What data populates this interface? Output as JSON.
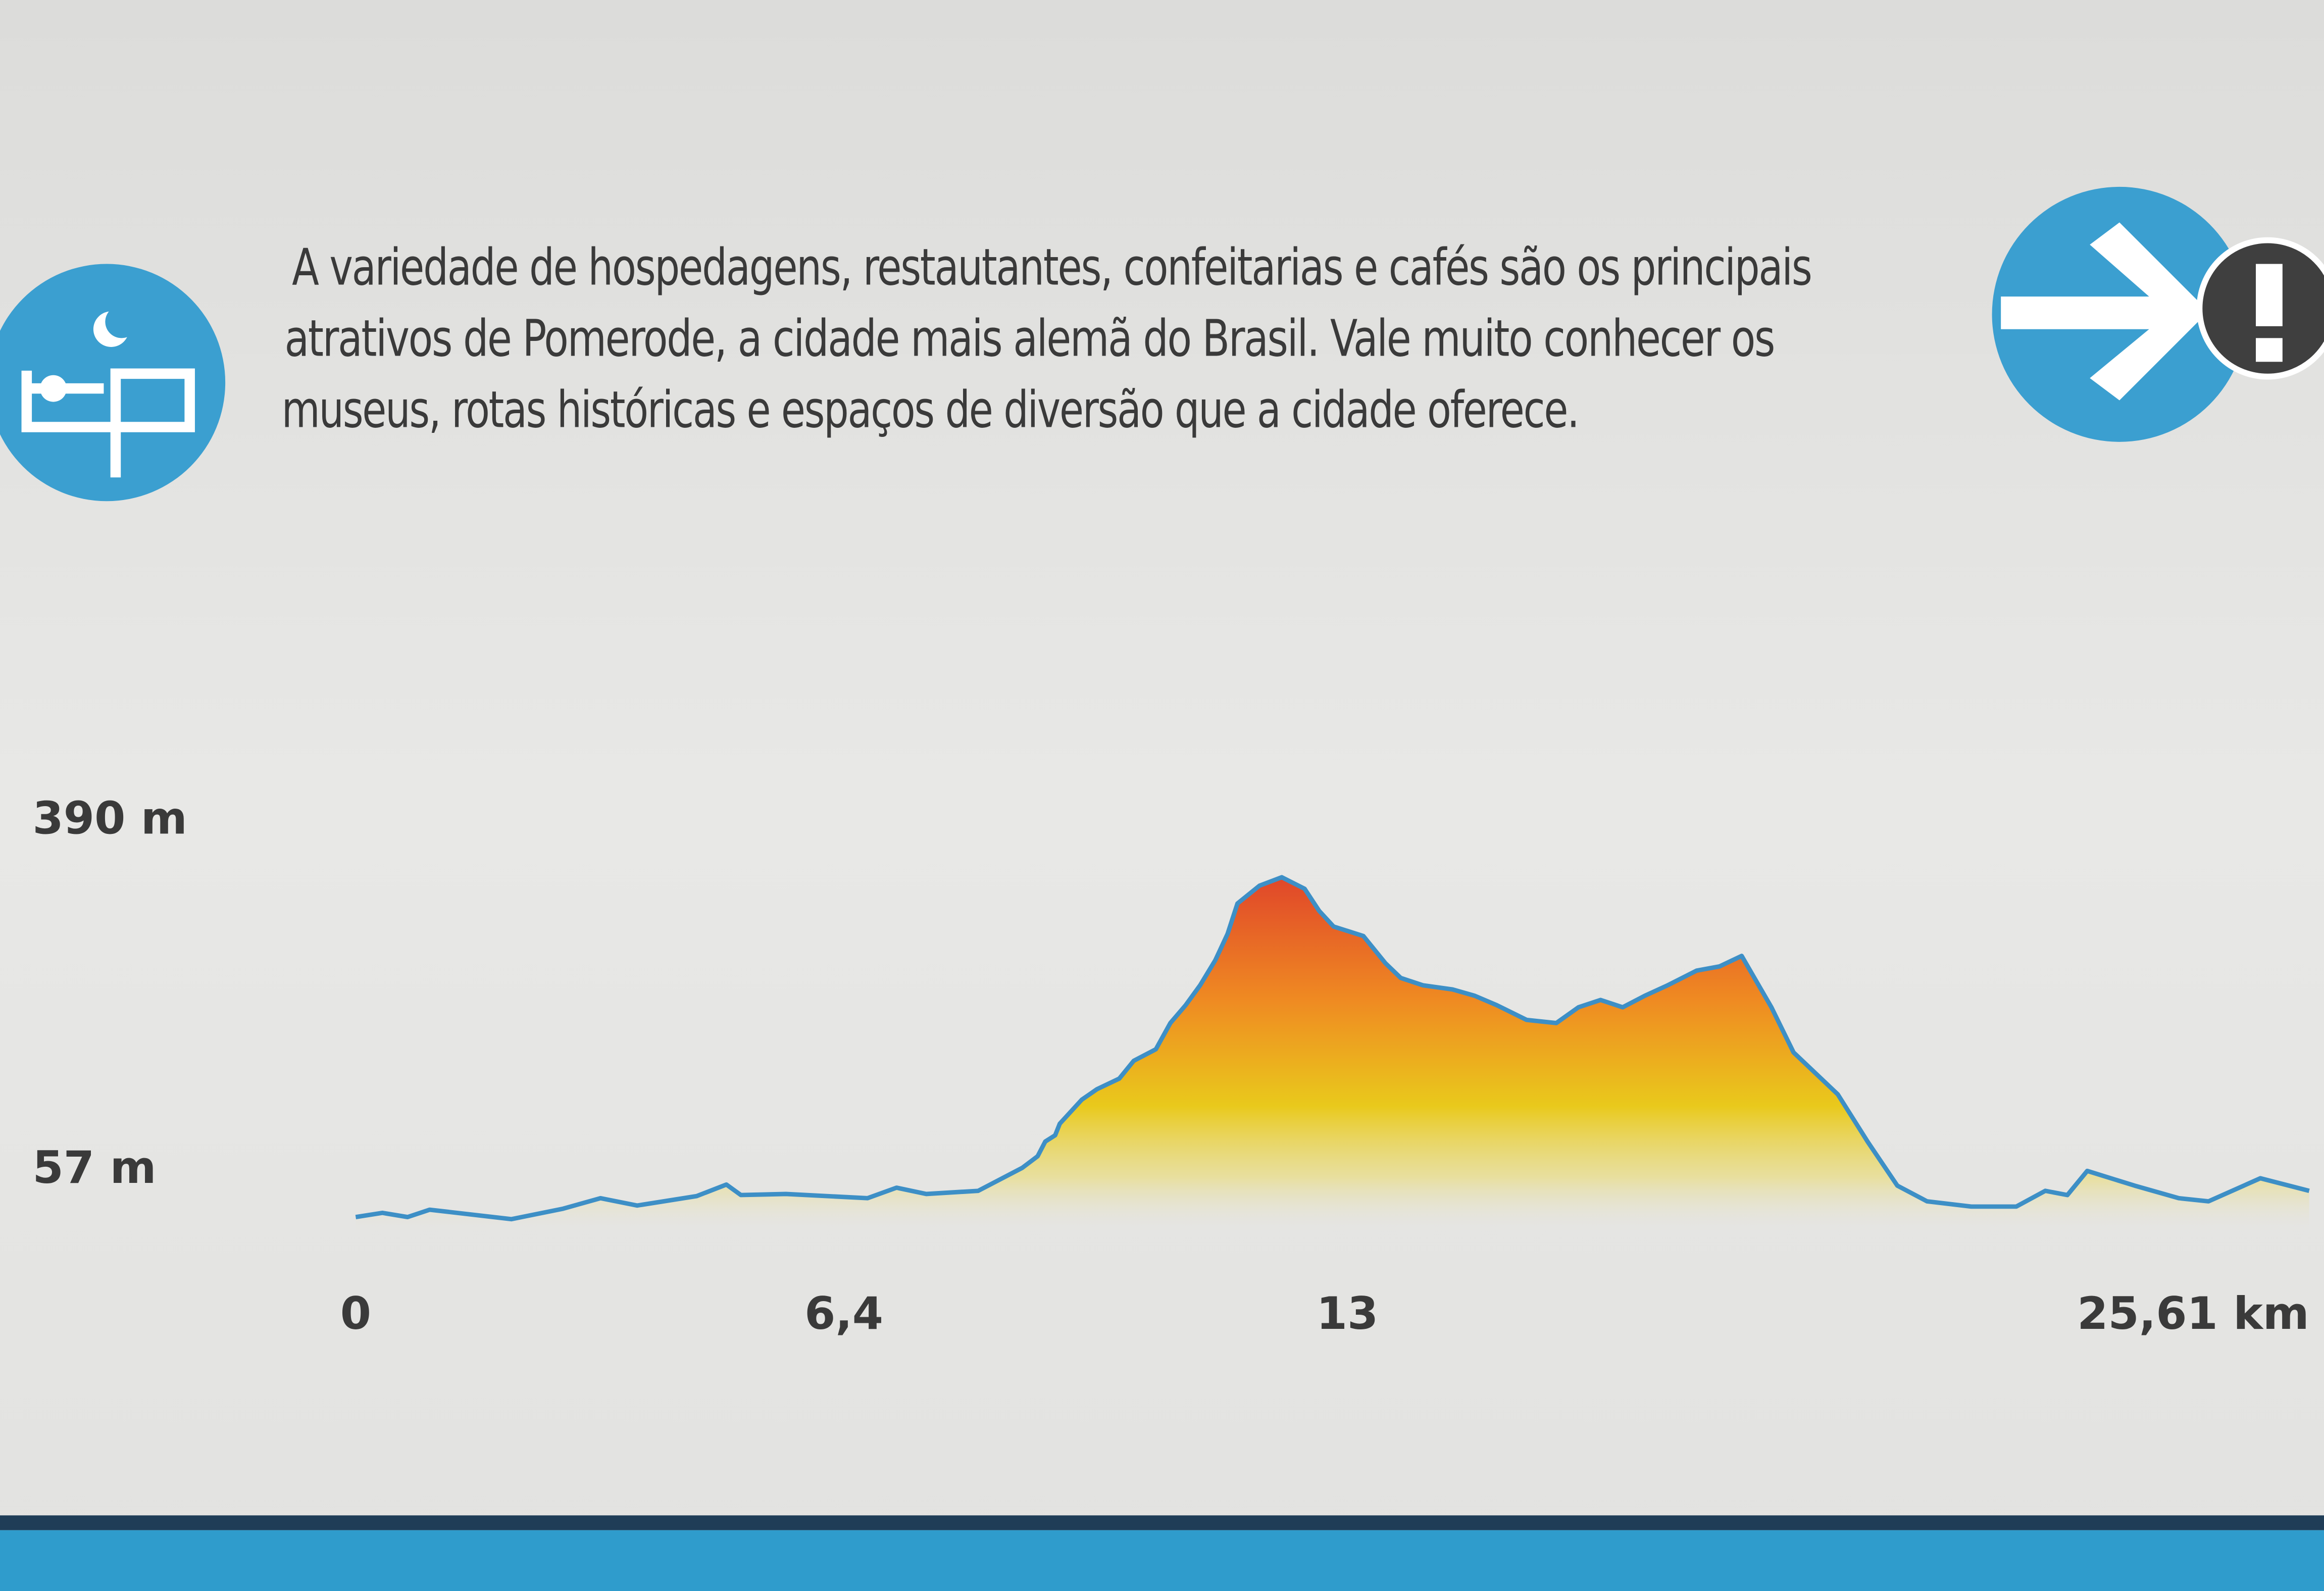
{
  "text": {
    "lines": [
      "A variedade de hospedagens, restautantes, confeitarias e cafés são os principais",
      "atrativos de Pomerode, a cidade mais alemã do Brasil. Vale muito conhecer os",
      "museus, rotas históricas e espaços de diversão que a cidade oferece."
    ]
  },
  "chart_data": {
    "type": "area",
    "x": [
      0,
      0.35,
      0.68,
      0.97,
      2.04,
      2.72,
      3.21,
      3.69,
      4.47,
      4.86,
      5.05,
      5.64,
      6.71,
      7.09,
      7.48,
      8.16,
      8.74,
      8.94,
      9.04,
      9.17,
      9.23,
      9.52,
      9.72,
      10.01,
      10.2,
      10.49,
      10.68,
      10.88,
      11.07,
      11.27,
      11.43,
      11.56,
      11.85,
      12.14,
      12.44,
      12.63,
      12.82,
      13.21,
      13.5,
      13.7,
      13.99,
      14.38,
      14.67,
      14.96,
      15.35,
      15.74,
      16.03,
      16.32,
      16.61,
      16.9,
      17.2,
      17.58,
      17.88,
      18.17,
      18.56,
      18.85,
      19.43,
      19.82,
      20.21,
      20.6,
      21.18,
      21.77,
      22.15,
      22.44,
      22.7,
      23.32,
      23.9,
      24.29,
      24.97,
      25.61
    ],
    "values": [
      13,
      17,
      13,
      20,
      11,
      21,
      31,
      24,
      33,
      44,
      34,
      35,
      31,
      41,
      35,
      38,
      60,
      71,
      85,
      91,
      102,
      125,
      135,
      145,
      162,
      173,
      198,
      215,
      234,
      258,
      283,
      312,
      329,
      337,
      326,
      305,
      290,
      281,
      255,
      241,
      234,
      230,
      224,
      215,
      201,
      198,
      213,
      220,
      213,
      224,
      234,
      248,
      252,
      262,
      213,
      170,
      130,
      85,
      43,
      28,
      23,
      23,
      38,
      34,
      57,
      43,
      31,
      28,
      50,
      38
    ],
    "color": "#3d8fc6",
    "xlim": [
      0,
      25.61
    ],
    "xticks": [
      0,
      {
        "value": 6.4,
        "label": "6,4"
      },
      13,
      {
        "value": 25.61,
        "label": "25,61 km"
      }
    ],
    "ylim": [
      0,
      410
    ],
    "yticks": [
      {
        "value": 57,
        "label": "57 m"
      },
      {
        "value": 390,
        "label": "390 m"
      }
    ],
    "grid": false
  }
}
